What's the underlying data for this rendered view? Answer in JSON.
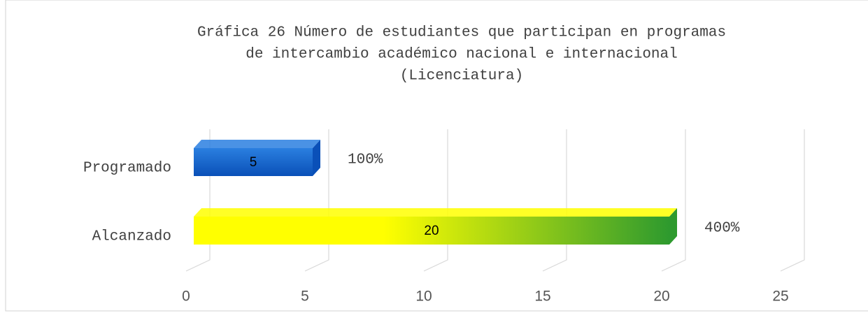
{
  "chart_data": {
    "type": "bar",
    "orientation": "horizontal",
    "title": [
      "Gráfica  26 Número de estudiantes que participan en programas",
      "de intercambio académico nacional e internacional",
      "(Licenciatura)"
    ],
    "categories": [
      "Programado",
      "Alcanzado"
    ],
    "values": [
      5,
      20
    ],
    "percent_labels": [
      "100%",
      "400%"
    ],
    "colors": [
      [
        "#2a7fe0",
        "#0a50b8"
      ],
      [
        "#ffff00",
        "#2e9a2e"
      ]
    ],
    "xlim": [
      0,
      25
    ],
    "xticks": [
      0,
      5,
      10,
      15,
      20,
      25
    ],
    "grid": true
  }
}
